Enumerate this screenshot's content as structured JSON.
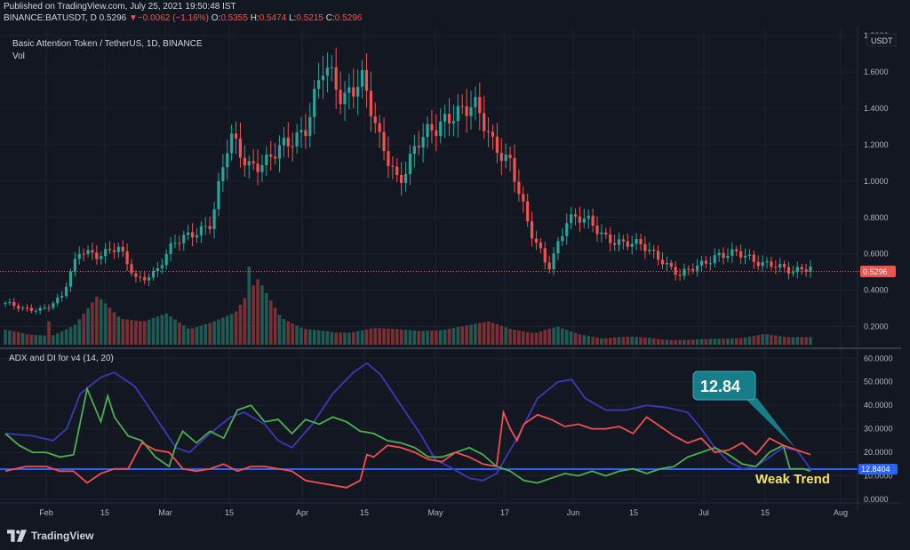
{
  "header": {
    "published": "Published on TradingView.com, July 25, 2021 19:50:48 IST",
    "symbol": "BINANCE:BATUSDT, D",
    "price": "0.5296",
    "change_arrow": "▼",
    "change": "−0.0062 (−1.16%)",
    "o_label": "O:",
    "o": "0.5355",
    "h_label": "H:",
    "h": "0.5474",
    "l_label": "L:",
    "l": "0.5215",
    "c_label": "C:",
    "c": "0.5296"
  },
  "legend": {
    "title": "Basic Attention Token / TetherUS, 1D, BINANCE",
    "volume": "Vol",
    "indicator": "ADX and DI for v4 (14, 20)"
  },
  "annotations": {
    "callout": "12.84",
    "weak_trend": "Weak Trend"
  },
  "footer": {
    "brand": "TradingView"
  },
  "colors": {
    "background": "#131722",
    "up": "#26a69a",
    "down": "#ef5350",
    "adx": "#3f37b5",
    "di_plus": "#4caf50",
    "di_minus": "#f44f4f",
    "threshold": "#2962ff",
    "callout_bg": "#177e89",
    "weak_trend": "#f5e36b"
  },
  "chart_data": [
    {
      "type": "candlestick",
      "title": "Basic Attention Token / TetherUS, 1D, BINANCE",
      "unit": "USDT",
      "x_ticks": [
        "Feb",
        "15",
        "Mar",
        "15",
        "Apr",
        "15",
        "May",
        "17",
        "Jun",
        "15",
        "Jul",
        "15",
        "Aug"
      ],
      "y_ticks": [
        "1.8000",
        "1.6000",
        "1.4000",
        "1.2000",
        "1.0000",
        "0.8000",
        "0.6000",
        "0.4000",
        "0.2000"
      ],
      "ylim": [
        0.1,
        1.85
      ],
      "last_price_label": "0.5296",
      "approx_close_points": [
        [
          "Jan 20",
          0.33
        ],
        [
          "Jan 28",
          0.29
        ],
        [
          "Feb 3",
          0.3
        ],
        [
          "Feb 8",
          0.36
        ],
        [
          "Feb 12",
          0.62
        ],
        [
          "Feb 17",
          0.6
        ],
        [
          "Feb 22",
          0.63
        ],
        [
          "Feb 26",
          0.46
        ],
        [
          "Mar 2",
          0.5
        ],
        [
          "Mar 6",
          0.65
        ],
        [
          "Mar 10",
          0.72
        ],
        [
          "Mar 14",
          0.77
        ],
        [
          "Mar 16",
          1.24
        ],
        [
          "Mar 20",
          1.1
        ],
        [
          "Mar 26",
          1.1
        ],
        [
          "Mar 30",
          1.2
        ],
        [
          "Apr 4",
          1.3
        ],
        [
          "Apr 8",
          1.62
        ],
        [
          "Apr 12",
          1.45
        ],
        [
          "Apr 16",
          1.6
        ],
        [
          "Apr 20",
          1.2
        ],
        [
          "Apr 24",
          1.0
        ],
        [
          "Apr 28",
          1.22
        ],
        [
          "May 2",
          1.27
        ],
        [
          "May 6",
          1.4
        ],
        [
          "May 11",
          1.42
        ],
        [
          "May 16",
          1.2
        ],
        [
          "May 19",
          1.12
        ],
        [
          "May 20",
          0.72
        ],
        [
          "May 23",
          0.52
        ],
        [
          "May 27",
          0.8
        ],
        [
          "Jun 2",
          0.78
        ],
        [
          "Jun 7",
          0.7
        ],
        [
          "Jun 12",
          0.66
        ],
        [
          "Jun 17",
          0.64
        ],
        [
          "Jun 21",
          0.58
        ],
        [
          "Jun 24",
          0.48
        ],
        [
          "Jun 28",
          0.53
        ],
        [
          "Jul 2",
          0.6
        ],
        [
          "Jul 7",
          0.6
        ],
        [
          "Jul 12",
          0.56
        ],
        [
          "Jul 17",
          0.55
        ],
        [
          "Jul 20",
          0.49
        ],
        [
          "Jul 25",
          0.53
        ]
      ]
    },
    {
      "type": "bar",
      "name": "Vol",
      "note": "volume histogram, no scale shown; relative heights",
      "relative_values": [
        0.35,
        0.2,
        0.15,
        0.3,
        0.7,
        0.35,
        0.3,
        0.4,
        0.2,
        0.3,
        0.45,
        1.0,
        0.45,
        0.3,
        0.3,
        0.25,
        0.3,
        0.25,
        0.2,
        0.2,
        0.25,
        0.3,
        0.2,
        0.15,
        0.25,
        0.15,
        0.1,
        0.15,
        0.15,
        0.1,
        0.1,
        0.1,
        0.1,
        0.15,
        0.1,
        0.1
      ]
    },
    {
      "type": "line",
      "title": "ADX and DI for v4 (14, 20)",
      "x_ticks": [
        "Feb",
        "15",
        "Mar",
        "15",
        "Apr",
        "15",
        "May",
        "17",
        "Jun",
        "15",
        "Jul",
        "15",
        "Aug"
      ],
      "y_ticks": [
        "60.0000",
        "50.0000",
        "40.0000",
        "30.0000",
        "20.0000",
        "10.0000",
        "0.0000"
      ],
      "ylim": [
        0,
        62
      ],
      "threshold": 12.84,
      "threshold_label": "12.8404",
      "series": [
        {
          "key": "adx",
          "points": [
            [
              0,
              28
            ],
            [
              4,
              27
            ],
            [
              7,
              25
            ],
            [
              9,
              30
            ],
            [
              11,
              45
            ],
            [
              14,
              52
            ],
            [
              16,
              54
            ],
            [
              19,
              48
            ],
            [
              22,
              35
            ],
            [
              25,
              22
            ],
            [
              27,
              20
            ],
            [
              30,
              28
            ],
            [
              33,
              35
            ],
            [
              35,
              37
            ],
            [
              38,
              32
            ],
            [
              40,
              25
            ],
            [
              42,
              22
            ],
            [
              45,
              32
            ],
            [
              48,
              45
            ],
            [
              51,
              54
            ],
            [
              53,
              58
            ],
            [
              55,
              53
            ],
            [
              58,
              40
            ],
            [
              61,
              27
            ],
            [
              63,
              17
            ],
            [
              65,
              14
            ],
            [
              68,
              9
            ],
            [
              70,
              8
            ],
            [
              72,
              11
            ],
            [
              75,
              26
            ],
            [
              78,
              43
            ],
            [
              81,
              50
            ],
            [
              83,
              51
            ],
            [
              85,
              43
            ],
            [
              88,
              38
            ],
            [
              91,
              38
            ],
            [
              94,
              40
            ],
            [
              97,
              39
            ],
            [
              100,
              37
            ],
            [
              102,
              30
            ],
            [
              104,
              22
            ],
            [
              106,
              16
            ],
            [
              108,
              13
            ],
            [
              110,
              14
            ],
            [
              112,
              18
            ],
            [
              114,
              22
            ],
            [
              116,
              21
            ],
            [
              118,
              13
            ]
          ]
        },
        {
          "key": "di_plus",
          "points": [
            [
              0,
              28
            ],
            [
              2,
              23
            ],
            [
              4,
              20
            ],
            [
              6,
              20
            ],
            [
              8,
              18
            ],
            [
              10,
              19
            ],
            [
              12,
              47
            ],
            [
              13,
              40
            ],
            [
              14,
              33
            ],
            [
              15,
              44
            ],
            [
              16,
              35
            ],
            [
              18,
              27
            ],
            [
              20,
              25
            ],
            [
              22,
              18
            ],
            [
              24,
              14
            ],
            [
              25,
              23
            ],
            [
              26,
              29
            ],
            [
              28,
              24
            ],
            [
              30,
              29
            ],
            [
              32,
              26
            ],
            [
              34,
              38
            ],
            [
              36,
              40
            ],
            [
              38,
              33
            ],
            [
              40,
              34
            ],
            [
              42,
              28
            ],
            [
              44,
              34
            ],
            [
              46,
              32
            ],
            [
              48,
              35
            ],
            [
              50,
              33
            ],
            [
              52,
              29
            ],
            [
              54,
              28
            ],
            [
              56,
              25
            ],
            [
              58,
              24
            ],
            [
              60,
              22
            ],
            [
              62,
              18
            ],
            [
              64,
              18
            ],
            [
              66,
              20
            ],
            [
              68,
              22
            ],
            [
              70,
              19
            ],
            [
              72,
              14
            ],
            [
              74,
              12
            ],
            [
              76,
              8
            ],
            [
              78,
              7
            ],
            [
              80,
              9
            ],
            [
              82,
              11
            ],
            [
              84,
              10
            ],
            [
              86,
              12
            ],
            [
              88,
              10
            ],
            [
              90,
              12
            ],
            [
              92,
              13
            ],
            [
              94,
              11
            ],
            [
              96,
              13
            ],
            [
              98,
              14
            ],
            [
              100,
              18
            ],
            [
              102,
              20
            ],
            [
              104,
              22
            ],
            [
              106,
              19
            ],
            [
              108,
              15
            ],
            [
              110,
              14
            ],
            [
              112,
              20
            ],
            [
              114,
              23
            ],
            [
              115,
              13
            ],
            [
              117,
              13
            ],
            [
              118,
              12
            ]
          ]
        },
        {
          "key": "di_minus",
          "points": [
            [
              0,
              12
            ],
            [
              3,
              14
            ],
            [
              6,
              14
            ],
            [
              8,
              12
            ],
            [
              10,
              12
            ],
            [
              12,
              7
            ],
            [
              14,
              11
            ],
            [
              16,
              13
            ],
            [
              18,
              13
            ],
            [
              20,
              24
            ],
            [
              22,
              21
            ],
            [
              24,
              20
            ],
            [
              26,
              13
            ],
            [
              28,
              12
            ],
            [
              30,
              13
            ],
            [
              32,
              15
            ],
            [
              34,
              12
            ],
            [
              36,
              14
            ],
            [
              38,
              14
            ],
            [
              40,
              13
            ],
            [
              42,
              12
            ],
            [
              44,
              8
            ],
            [
              46,
              7
            ],
            [
              48,
              6
            ],
            [
              50,
              5
            ],
            [
              52,
              8
            ],
            [
              53,
              19
            ],
            [
              54,
              18
            ],
            [
              56,
              23
            ],
            [
              58,
              22
            ],
            [
              60,
              20
            ],
            [
              62,
              17
            ],
            [
              64,
              16
            ],
            [
              66,
              20
            ],
            [
              68,
              18
            ],
            [
              70,
              15
            ],
            [
              72,
              14
            ],
            [
              73,
              37
            ],
            [
              74,
              30
            ],
            [
              75,
              25
            ],
            [
              76,
              32
            ],
            [
              78,
              36
            ],
            [
              80,
              34
            ],
            [
              82,
              31
            ],
            [
              84,
              32
            ],
            [
              86,
              30
            ],
            [
              88,
              30
            ],
            [
              90,
              31
            ],
            [
              92,
              28
            ],
            [
              94,
              35
            ],
            [
              96,
              31
            ],
            [
              98,
              27
            ],
            [
              100,
              24
            ],
            [
              102,
              26
            ],
            [
              104,
              20
            ],
            [
              106,
              21
            ],
            [
              108,
              24
            ],
            [
              110,
              19
            ],
            [
              112,
              26
            ],
            [
              114,
              23
            ],
            [
              116,
              21
            ],
            [
              118,
              19
            ]
          ]
        }
      ]
    }
  ]
}
